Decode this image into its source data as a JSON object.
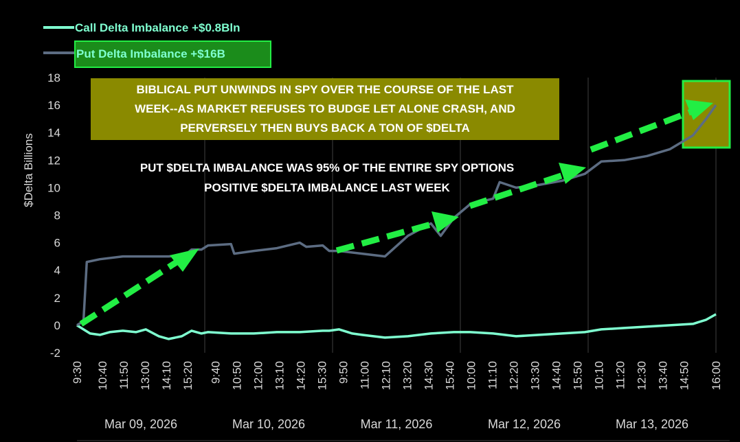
{
  "legend": {
    "call_label": "Call Delta Imbalance +$0.8Bln",
    "put_label": "Put Delta Imbalance +$16B"
  },
  "annotations": {
    "box_line1": "BIBLICAL PUT UNWINDS IN SPY OVER THE COURSE OF THE LAST",
    "box_line2": "WEEK--AS MARKET REFUSES TO BUDGE LET ALONE CRASH, AND",
    "box_line3": "PERVERSELY THEN BUYS BACK A TON OF $DELTA",
    "note_line1": "PUT $DELTA IMBALANCE WAS 95% OF THE ENTIRE SPY OPTIONS",
    "note_line2": "POSITIVE $DELTA IMBALANCE LAST WEEK"
  },
  "colors": {
    "background": "#000000",
    "call_line": "#7fffd0",
    "put_line": "#5c6c82",
    "arrow": "#22ee44",
    "annotation_box": "#8a8a00",
    "highlight_box": "#1b8c1b",
    "highlight_border": "#22ee44",
    "text": "#ffffff",
    "axis_text": "#d9d9d9",
    "grid": "#404040"
  },
  "chart_data": {
    "type": "line",
    "ylabel": "$Delta Billions",
    "ylim": [
      -2,
      18
    ],
    "yticks": [
      -2,
      0,
      2,
      4,
      6,
      8,
      10,
      12,
      14,
      16,
      18
    ],
    "days": [
      {
        "label": "Mar 09, 2026",
        "ticks": [
          "9:30",
          "10:40",
          "11:50",
          "13:00",
          "14:10",
          "15:20"
        ]
      },
      {
        "label": "Mar 10, 2026",
        "ticks": [
          "9:40",
          "10:50",
          "12:00",
          "13:10",
          "14:20",
          "15:30"
        ]
      },
      {
        "label": "Mar 11, 2026",
        "ticks": [
          "9:50",
          "11:00",
          "12:10",
          "13:20",
          "14:30",
          "15:40"
        ]
      },
      {
        "label": "Mar 12, 2026",
        "ticks": [
          "10:00",
          "11:10",
          "12:20",
          "13:30",
          "14:40",
          "15:50"
        ]
      },
      {
        "label": "Mar 13, 2026",
        "ticks": [
          "10:10",
          "11:20",
          "12:30",
          "13:40",
          "14:50",
          "16:00"
        ]
      }
    ],
    "x_start": "Mar 09, 2026 9:30",
    "x_end": "Mar 13, 2026 16:00",
    "series": [
      {
        "name": "Call Delta Imbalance +$0.8Bln",
        "points": [
          [
            "Mar 09 9:30",
            0.0
          ],
          [
            "Mar 09 9:50",
            -0.3
          ],
          [
            "Mar 09 10:10",
            -0.6
          ],
          [
            "Mar 09 10:40",
            -0.7
          ],
          [
            "Mar 09 11:10",
            -0.5
          ],
          [
            "Mar 09 11:50",
            -0.4
          ],
          [
            "Mar 09 12:30",
            -0.5
          ],
          [
            "Mar 09 13:00",
            -0.3
          ],
          [
            "Mar 09 13:40",
            -0.8
          ],
          [
            "Mar 09 14:10",
            -1.0
          ],
          [
            "Mar 09 14:50",
            -0.8
          ],
          [
            "Mar 09 15:20",
            -0.4
          ],
          [
            "Mar 09 15:50",
            -0.6
          ],
          [
            "Mar 10 9:40",
            -0.5
          ],
          [
            "Mar 10 10:50",
            -0.6
          ],
          [
            "Mar 10 12:00",
            -0.6
          ],
          [
            "Mar 10 13:10",
            -0.5
          ],
          [
            "Mar 10 14:20",
            -0.5
          ],
          [
            "Mar 10 15:30",
            -0.4
          ],
          [
            "Mar 10 15:50",
            -0.4
          ],
          [
            "Mar 11 9:50",
            -0.3
          ],
          [
            "Mar 11 10:30",
            -0.6
          ],
          [
            "Mar 11 11:00",
            -0.7
          ],
          [
            "Mar 11 12:10",
            -0.9
          ],
          [
            "Mar 11 13:20",
            -0.8
          ],
          [
            "Mar 11 14:30",
            -0.6
          ],
          [
            "Mar 11 15:40",
            -0.5
          ],
          [
            "Mar 12 10:00",
            -0.5
          ],
          [
            "Mar 12 11:10",
            -0.6
          ],
          [
            "Mar 12 12:20",
            -0.8
          ],
          [
            "Mar 12 13:30",
            -0.7
          ],
          [
            "Mar 12 14:40",
            -0.6
          ],
          [
            "Mar 12 15:50",
            -0.5
          ],
          [
            "Mar 13 10:10",
            -0.3
          ],
          [
            "Mar 13 11:20",
            -0.2
          ],
          [
            "Mar 13 12:30",
            -0.1
          ],
          [
            "Mar 13 13:40",
            0.0
          ],
          [
            "Mar 13 14:50",
            0.1
          ],
          [
            "Mar 13 15:30",
            0.4
          ],
          [
            "Mar 13 16:00",
            0.8
          ]
        ]
      },
      {
        "name": "Put Delta Imbalance +$16B",
        "points": [
          [
            "Mar 09 9:30",
            0.0
          ],
          [
            "Mar 09 9:50",
            0.3
          ],
          [
            "Mar 09 10:00",
            4.6
          ],
          [
            "Mar 09 10:40",
            4.8
          ],
          [
            "Mar 09 11:50",
            5.0
          ],
          [
            "Mar 09 13:00",
            5.0
          ],
          [
            "Mar 09 14:10",
            5.0
          ],
          [
            "Mar 09 15:00",
            5.1
          ],
          [
            "Mar 09 15:20",
            5.5
          ],
          [
            "Mar 09 15:50",
            5.5
          ],
          [
            "Mar 10 9:40",
            5.8
          ],
          [
            "Mar 10 10:50",
            5.9
          ],
          [
            "Mar 10 11:00",
            5.2
          ],
          [
            "Mar 10 12:00",
            5.4
          ],
          [
            "Mar 10 13:10",
            5.6
          ],
          [
            "Mar 10 14:20",
            6.0
          ],
          [
            "Mar 10 14:40",
            5.7
          ],
          [
            "Mar 10 15:30",
            5.8
          ],
          [
            "Mar 10 15:50",
            5.4
          ],
          [
            "Mar 11 9:50",
            5.4
          ],
          [
            "Mar 11 11:00",
            5.2
          ],
          [
            "Mar 11 12:10",
            5.0
          ],
          [
            "Mar 11 13:20",
            6.5
          ],
          [
            "Mar 11 14:30",
            7.4
          ],
          [
            "Mar 11 15:00",
            6.5
          ],
          [
            "Mar 11 15:40",
            7.8
          ],
          [
            "Mar 12 10:00",
            8.8
          ],
          [
            "Mar 12 11:10",
            9.2
          ],
          [
            "Mar 12 11:30",
            10.4
          ],
          [
            "Mar 12 12:20",
            10.0
          ],
          [
            "Mar 12 13:30",
            10.2
          ],
          [
            "Mar 12 14:40",
            10.5
          ],
          [
            "Mar 12 15:50",
            11.0
          ],
          [
            "Mar 13 10:10",
            11.9
          ],
          [
            "Mar 13 11:20",
            12.0
          ],
          [
            "Mar 13 12:30",
            12.3
          ],
          [
            "Mar 13 13:40",
            12.8
          ],
          [
            "Mar 13 14:50",
            13.8
          ],
          [
            "Mar 13 15:30",
            15.0
          ],
          [
            "Mar 13 16:00",
            16.0
          ]
        ]
      }
    ]
  }
}
